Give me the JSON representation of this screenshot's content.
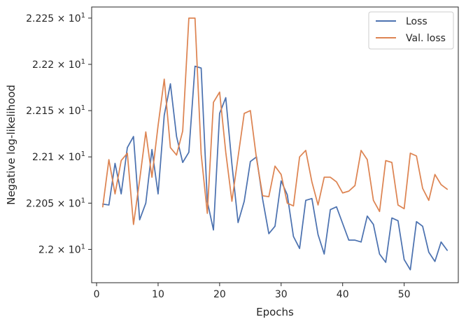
{
  "chart_data": {
    "type": "line",
    "xlabel": "Epochs",
    "ylabel": "Negative log-likelihood",
    "xlim": [
      -0.8,
      58.8
    ],
    "ylim": [
      21.964,
      22.262
    ],
    "x_ticks": [
      0,
      10,
      20,
      30,
      40,
      50
    ],
    "y_ticks": [
      {
        "value": 22.0,
        "mantissa": "2.2",
        "label": "2.2 × 10¹"
      },
      {
        "value": 22.05,
        "mantissa": "2.205",
        "label": "2.205 × 10¹"
      },
      {
        "value": 22.1,
        "mantissa": "2.21",
        "label": "2.21 × 10¹"
      },
      {
        "value": 22.15,
        "mantissa": "2.215",
        "label": "2.215 × 10¹"
      },
      {
        "value": 22.2,
        "mantissa": "2.22",
        "label": "2.22 × 10¹"
      },
      {
        "value": 22.25,
        "mantissa": "2.225",
        "label": "2.225 × 10¹"
      }
    ],
    "y_tick_exponent_base": "10",
    "y_tick_exponent": "1",
    "legend_position": "top-right",
    "grid": false,
    "x": [
      1,
      2,
      3,
      4,
      5,
      6,
      7,
      8,
      9,
      10,
      11,
      12,
      13,
      14,
      15,
      16,
      17,
      18,
      19,
      20,
      21,
      22,
      23,
      24,
      25,
      26,
      27,
      28,
      29,
      30,
      31,
      32,
      33,
      34,
      35,
      36,
      37,
      38,
      39,
      40,
      41,
      42,
      43,
      44,
      45,
      46,
      47,
      48,
      49,
      50,
      51,
      52,
      53,
      54,
      55,
      56,
      57
    ],
    "series": [
      {
        "name": "Loss",
        "color": "#4c72b0",
        "values": [
          22.049,
          22.048,
          22.093,
          22.06,
          22.11,
          22.122,
          22.032,
          22.05,
          22.108,
          22.06,
          22.145,
          22.179,
          22.122,
          22.094,
          22.105,
          22.198,
          22.196,
          22.052,
          22.021,
          22.147,
          22.164,
          22.092,
          22.029,
          22.052,
          22.095,
          22.1,
          22.054,
          22.017,
          22.025,
          22.074,
          22.059,
          22.014,
          22.001,
          22.053,
          22.055,
          22.016,
          21.995,
          22.043,
          22.046,
          22.028,
          22.01,
          22.01,
          22.008,
          22.036,
          22.027,
          21.995,
          21.986,
          22.034,
          22.031,
          21.989,
          21.978,
          22.03,
          22.025,
          21.997,
          21.987,
          22.008,
          21.999
        ]
      },
      {
        "name": "Val. loss",
        "color": "#dd8452",
        "values": [
          22.046,
          22.097,
          22.06,
          22.096,
          22.104,
          22.027,
          22.075,
          22.127,
          22.078,
          22.134,
          22.184,
          22.11,
          22.102,
          22.128,
          22.25,
          22.25,
          22.103,
          22.039,
          22.159,
          22.17,
          22.105,
          22.052,
          22.1,
          22.147,
          22.15,
          22.098,
          22.058,
          22.057,
          22.09,
          22.081,
          22.05,
          22.047,
          22.1,
          22.107,
          22.073,
          22.048,
          22.078,
          22.078,
          22.073,
          22.061,
          22.063,
          22.069,
          22.107,
          22.097,
          22.053,
          22.041,
          22.096,
          22.094,
          22.048,
          22.044,
          22.104,
          22.101,
          22.066,
          22.053,
          22.081,
          22.07,
          22.065
        ]
      }
    ]
  }
}
